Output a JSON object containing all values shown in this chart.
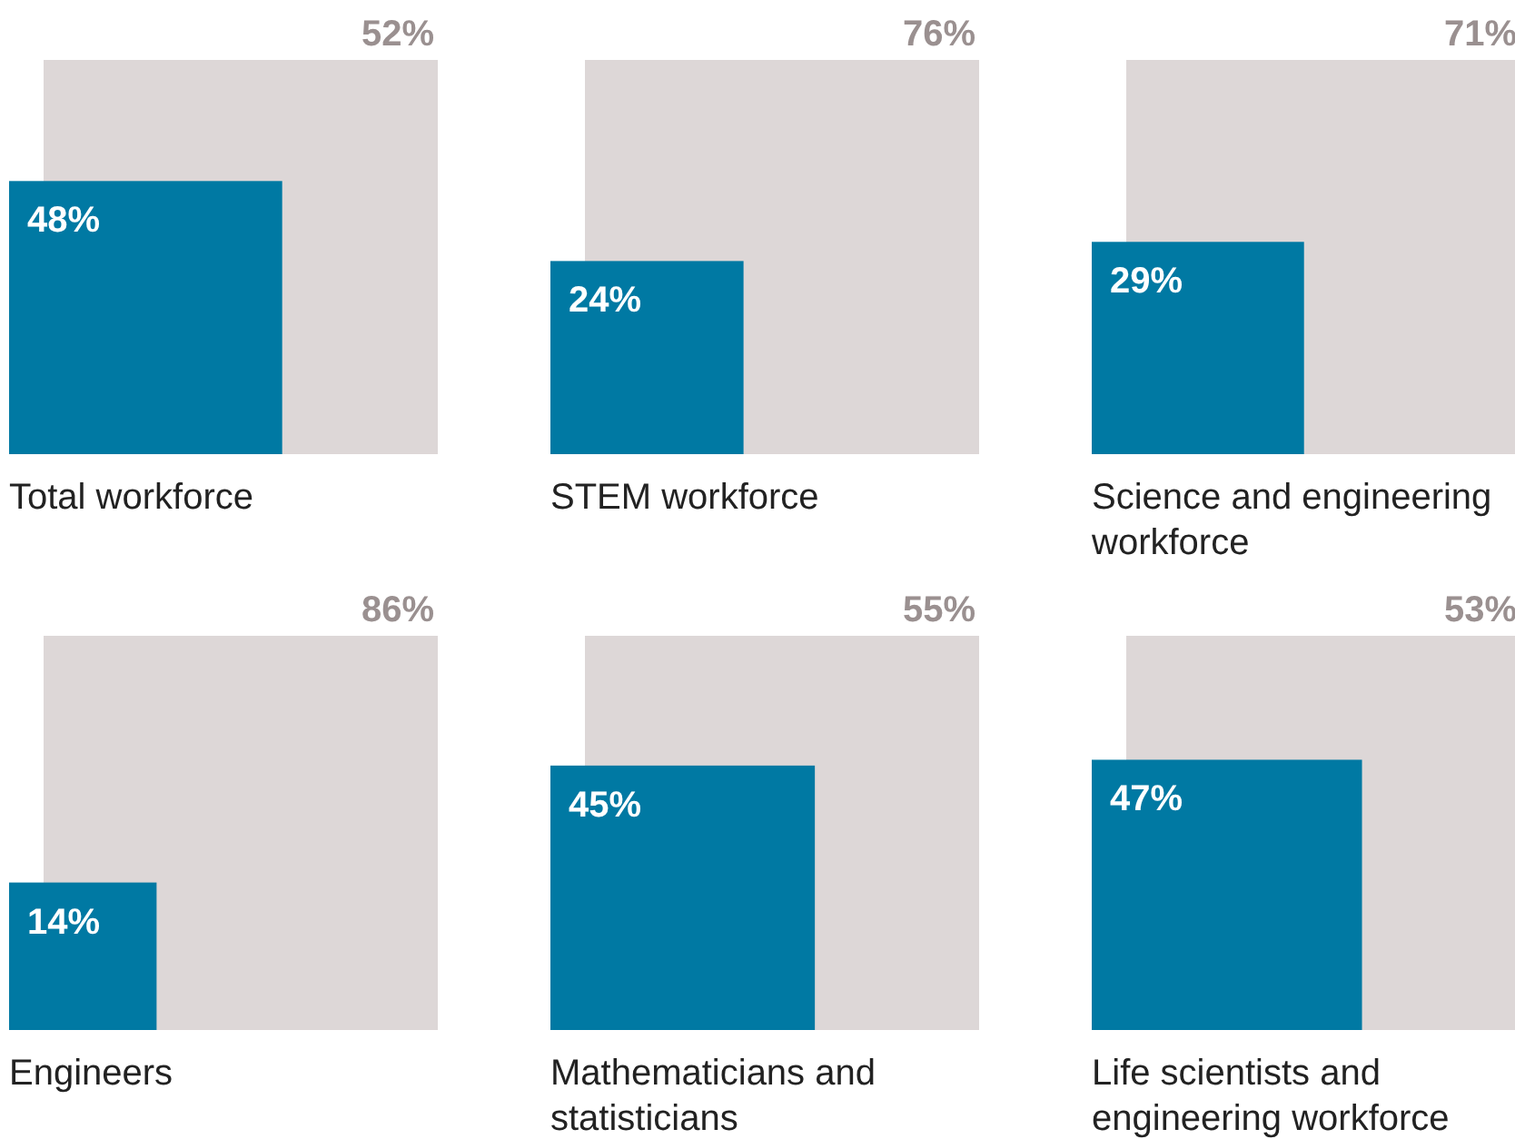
{
  "chart_data": [
    {
      "type": "other",
      "categories": [
        "Total workforce"
      ],
      "series": [
        {
          "color": "#0079a3",
          "values": [
            48
          ],
          "value_labels": [
            "48%"
          ]
        },
        {
          "color": "#ddd7d7",
          "values": [
            52
          ],
          "value_labels": [
            "52%"
          ]
        }
      ]
    },
    {
      "type": "other",
      "categories": [
        "STEM workforce"
      ],
      "series": [
        {
          "color": "#0079a3",
          "values": [
            24
          ],
          "value_labels": [
            "24%"
          ]
        },
        {
          "color": "#ddd7d7",
          "values": [
            76
          ],
          "value_labels": [
            "76%"
          ]
        }
      ]
    },
    {
      "type": "other",
      "categories": [
        "Science and engineering workforce"
      ],
      "series": [
        {
          "color": "#0079a3",
          "values": [
            29
          ],
          "value_labels": [
            "29%"
          ]
        },
        {
          "color": "#ddd7d7",
          "values": [
            71
          ],
          "value_labels": [
            "71%"
          ]
        }
      ]
    },
    {
      "type": "other",
      "categories": [
        "Engineers"
      ],
      "series": [
        {
          "color": "#0079a3",
          "values": [
            14
          ],
          "value_labels": [
            "14%"
          ]
        },
        {
          "color": "#ddd7d7",
          "values": [
            86
          ],
          "value_labels": [
            "86%"
          ]
        }
      ]
    },
    {
      "type": "other",
      "categories": [
        "Mathematicians and statisticians"
      ],
      "series": [
        {
          "color": "#0079a3",
          "values": [
            45
          ],
          "value_labels": [
            "45%"
          ]
        },
        {
          "color": "#ddd7d7",
          "values": [
            55
          ],
          "value_labels": [
            "55%"
          ]
        }
      ]
    },
    {
      "type": "other",
      "categories": [
        "Life scientists and engineering workforce"
      ],
      "series": [
        {
          "color": "#0079a3",
          "values": [
            47
          ],
          "value_labels": [
            "47%"
          ]
        },
        {
          "color": "#ddd7d7",
          "values": [
            53
          ],
          "value_labels": [
            "53%"
          ]
        }
      ]
    }
  ]
}
